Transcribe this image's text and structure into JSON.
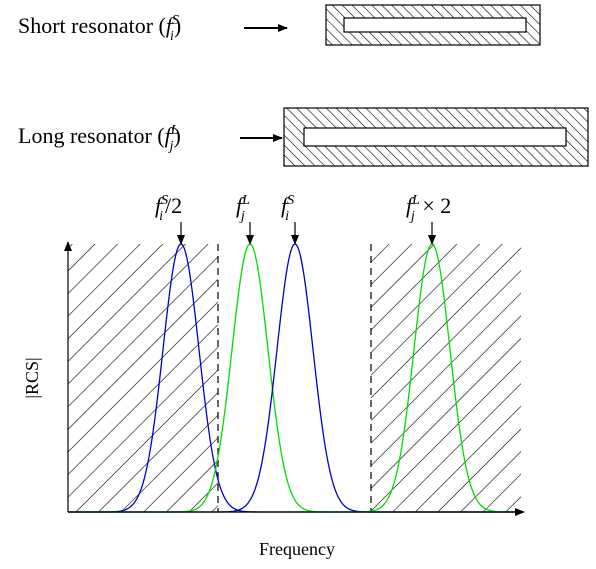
{
  "resonators": {
    "short": {
      "label_text": "Short resonator (",
      "label_var": "f",
      "label_sup": "S",
      "label_sub": "i",
      "label_close": ")"
    },
    "long": {
      "label_text": "Long resonator (",
      "label_var": "f",
      "label_sup": "L",
      "label_sub": "j",
      "label_close": ")"
    }
  },
  "peak_labels": [
    {
      "var": "f",
      "sup": "S",
      "sub": "i",
      "suffix": "/2"
    },
    {
      "var": "f",
      "sup": "L",
      "sub": "j",
      "suffix": ""
    },
    {
      "var": "f",
      "sup": "S",
      "sub": "i",
      "suffix": ""
    },
    {
      "var": "f",
      "sup": "L",
      "sub": "j",
      "suffix": " × 2"
    }
  ],
  "axes": {
    "ylabel": "|RCS|",
    "xlabel": "Frequency"
  },
  "colors": {
    "short_curve": "#0000cc",
    "long_curve": "#00dd00",
    "hatch": "#000000"
  }
}
